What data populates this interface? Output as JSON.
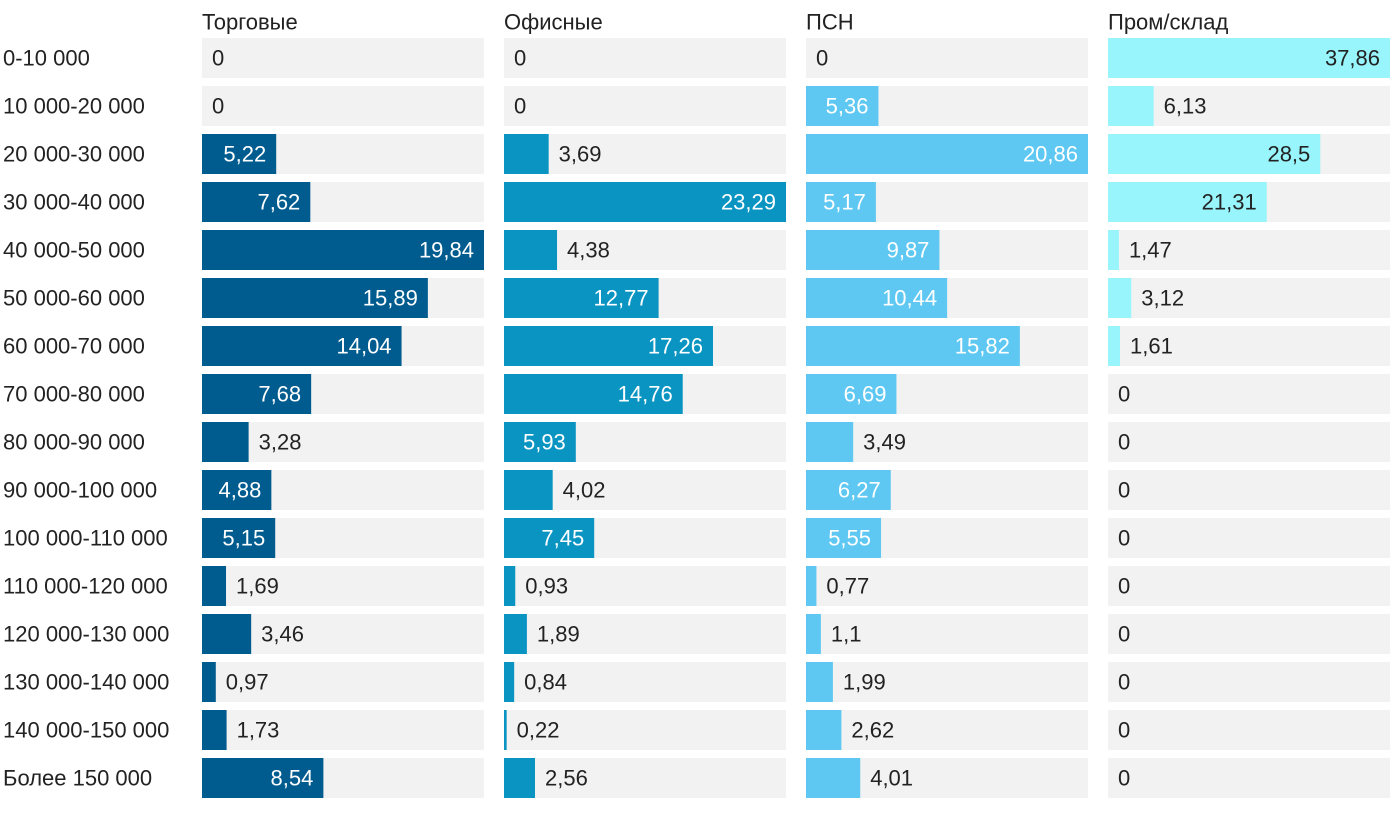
{
  "chart_data": {
    "type": "bar",
    "orientation": "horizontal",
    "layout": "small-multiples",
    "categories": [
      "0-10 000",
      "10 000-20 000",
      "20 000-30 000",
      "30 000-40 000",
      "40 000-50 000",
      "50 000-60 000",
      "60 000-70 000",
      "70 000-80 000",
      "80 000-90 000",
      "90 000-100 000",
      "100 000-110 000",
      "110 000-120 000",
      "120 000-130 000",
      "130 000-140 000",
      "140 000-150 000",
      "Более 150 000"
    ],
    "series": [
      {
        "name": "Торговые",
        "color": "#005b8f",
        "values": [
          0,
          0,
          5.22,
          7.62,
          19.84,
          15.89,
          14.04,
          7.68,
          3.28,
          4.88,
          5.15,
          1.69,
          3.46,
          0.97,
          1.73,
          8.54
        ],
        "labels": [
          "0",
          "0",
          "5,22",
          "7,62",
          "19,84",
          "15,89",
          "14,04",
          "7,68",
          "3,28",
          "4,88",
          "5,15",
          "1,69",
          "3,46",
          "0,97",
          "1,73",
          "8,54"
        ]
      },
      {
        "name": "Офисные",
        "color": "#0a94c2",
        "values": [
          0,
          0,
          3.69,
          23.29,
          4.38,
          12.77,
          17.26,
          14.76,
          5.93,
          4.02,
          7.45,
          0.93,
          1.89,
          0.84,
          0.22,
          2.56
        ],
        "labels": [
          "0",
          "0",
          "3,69",
          "23,29",
          "4,38",
          "12,77",
          "17,26",
          "14,76",
          "5,93",
          "4,02",
          "7,45",
          "0,93",
          "1,89",
          "0,84",
          "0,22",
          "2,56"
        ]
      },
      {
        "name": "ПСН",
        "color": "#5ec8f2",
        "values": [
          0,
          5.36,
          20.86,
          5.17,
          9.87,
          10.44,
          15.82,
          6.69,
          3.49,
          6.27,
          5.55,
          0.77,
          1.1,
          1.99,
          2.62,
          4.01
        ],
        "labels": [
          "0",
          "5,36",
          "20,86",
          "5,17",
          "9,87",
          "10,44",
          "15,82",
          "6,69",
          "3,49",
          "6,27",
          "5,55",
          "0,77",
          "1,1",
          "1,99",
          "2,62",
          "4,01"
        ]
      },
      {
        "name": "Пром/склад",
        "color": "#97f5fb",
        "values": [
          37.86,
          6.13,
          28.5,
          21.31,
          1.47,
          3.12,
          1.61,
          0,
          0,
          0,
          0,
          0,
          0,
          0,
          0,
          0
        ],
        "labels": [
          "37,86",
          "6,13",
          "28,5",
          "21,31",
          "1,47",
          "3,12",
          "1,61",
          "0",
          "0",
          "0",
          "0",
          "0",
          "0",
          "0",
          "0",
          "0"
        ]
      }
    ],
    "track_color": "#f2f2f2",
    "label_color_inside": "#ffffff",
    "label_color_outside": "#222222",
    "grid": false,
    "legend": "none"
  }
}
